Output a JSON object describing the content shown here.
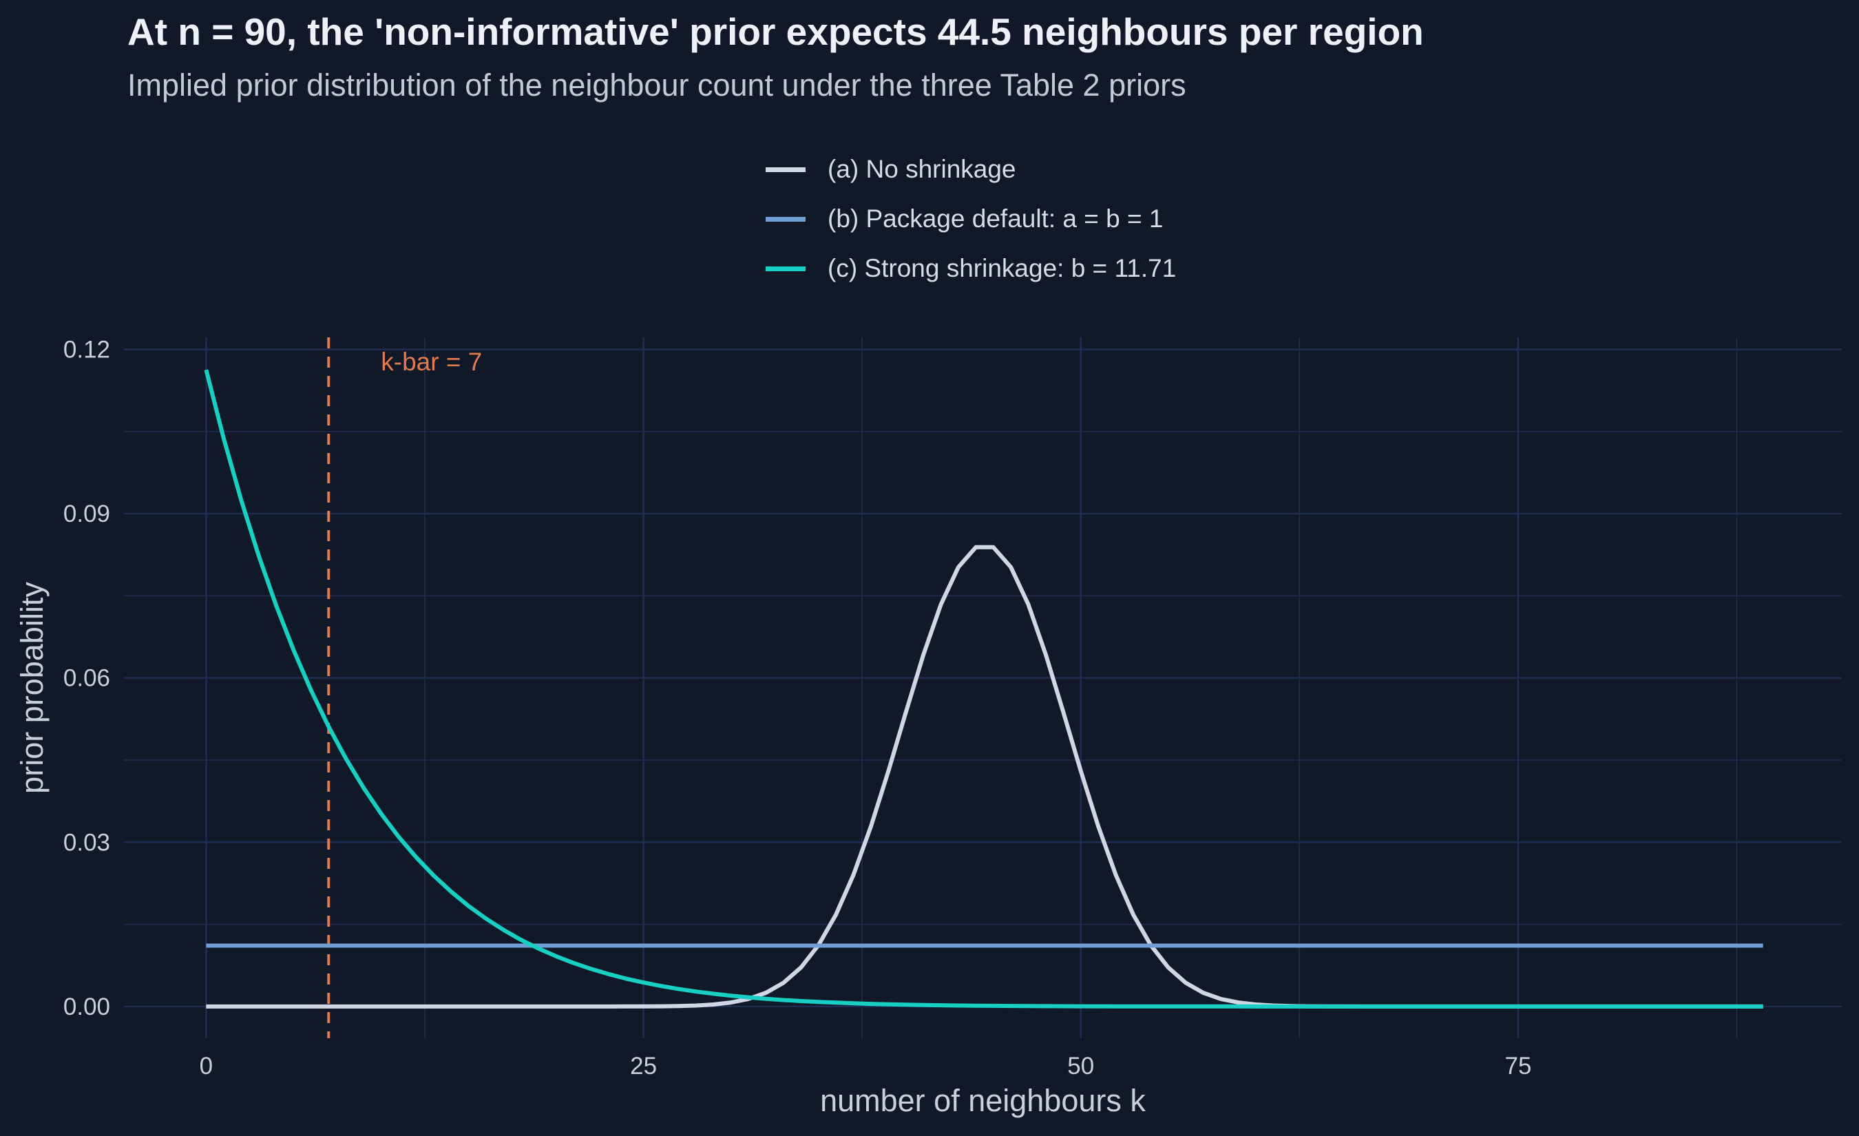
{
  "title": "At n = 90, the 'non-informative' prior expects 44.5 neighbours per region",
  "subtitle": "Implied prior distribution of the neighbour count under the three Table 2 priors",
  "colors": {
    "background": "#111827",
    "grid": "#1f2d54",
    "axis_text": "#c9cfdb",
    "no_shrinkage": "#d0d6e4",
    "package_default": "#6f9fd4",
    "strong_shrinkage": "#18cfc3",
    "kbar": "#e07a4f"
  },
  "chart_data": {
    "type": "line",
    "xlabel": "number of neighbours k",
    "ylabel": "prior probability",
    "xlim": [
      -4.7,
      93.5
    ],
    "ylim": [
      -0.0058,
      0.1222
    ],
    "xticks": [
      0,
      25,
      50,
      75
    ],
    "xtick_labels": [
      "0",
      "25",
      "50",
      "75"
    ],
    "yticks": [
      0.0,
      0.03,
      0.06,
      0.09,
      0.12
    ],
    "ytick_labels": [
      "0.00",
      "0.03",
      "0.06",
      "0.09",
      "0.12"
    ],
    "grid": true,
    "legend_position": "top-center",
    "annotation": {
      "x": 7,
      "label": "k-bar = 7"
    },
    "series": [
      {
        "name": "(a) No shrinkage",
        "distribution": "binomial",
        "n": 89,
        "p": 0.5,
        "x_range": [
          0,
          89
        ],
        "peak": 0.0843
      },
      {
        "name": "(b) Package default: a = b = 1",
        "distribution": "uniform",
        "x_range": [
          0,
          89
        ],
        "value": 0.01111
      },
      {
        "name": "(c) Strong shrinkage: b = 11.71",
        "distribution": "beta-binomial",
        "n": 89,
        "a": 1,
        "b": 11.71,
        "x_range": [
          0,
          89
        ],
        "value_at_0": 0.1159
      }
    ]
  }
}
